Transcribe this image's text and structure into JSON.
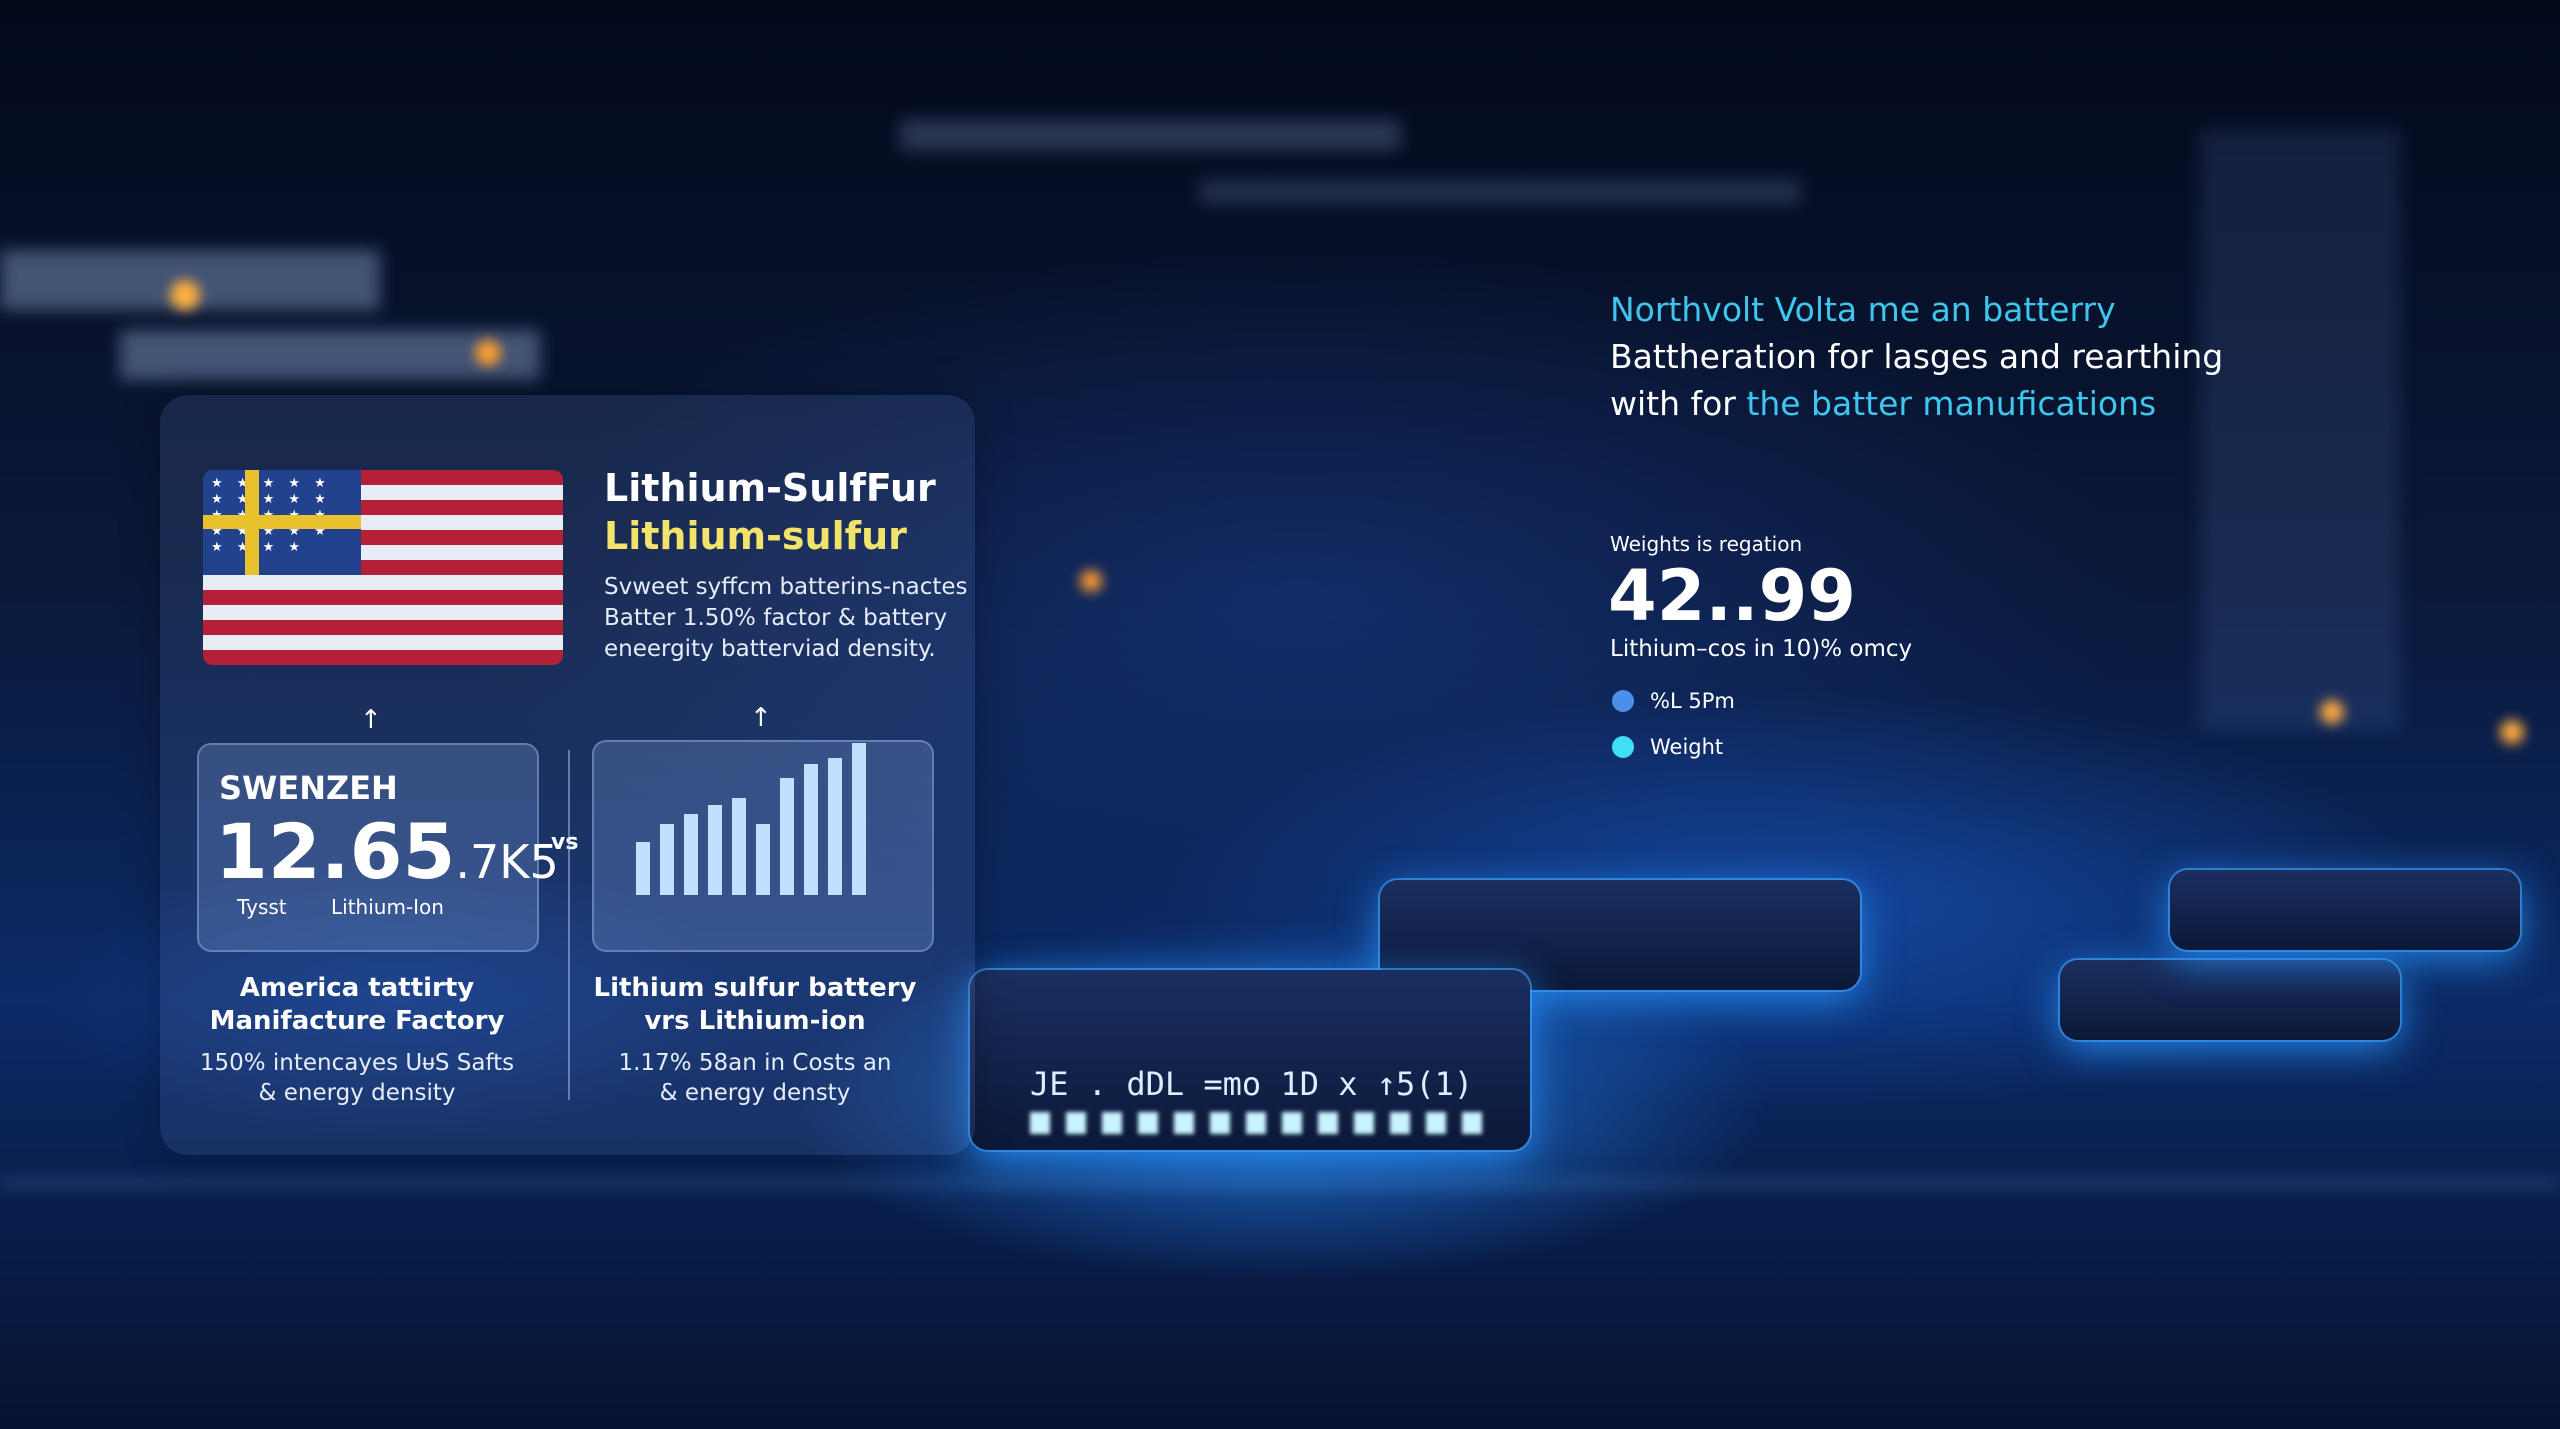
{
  "left_panel": {
    "flag_icon": "us-flag-with-swedish-cross",
    "title_line1": "Lithium-SulfFur",
    "title_line2": "Lithium-sulfur",
    "description": [
      "Svweet syffcm batterins-nactes",
      "Batter 1.50% factor & battery",
      "eneergity batterviad density."
    ],
    "card_left": {
      "label": "SWENZEH",
      "value_main": "12.65",
      "value_suffix": ".7K5",
      "sub_left": "Tysst",
      "sub_right": "Lithium-Ion"
    },
    "vs_label": "vs",
    "card_right": {
      "chart_icon": "bar-chart-icon",
      "bar_levels": [
        0.35,
        0.47,
        0.53,
        0.59,
        0.64,
        0.47,
        0.77,
        0.86,
        0.9,
        1.0
      ]
    },
    "caption_left": {
      "title": [
        "America tattirty",
        "Manifacture Factory"
      ],
      "sub": [
        "150% intencayes UᵾS Safts",
        "& energy density"
      ]
    },
    "caption_right": {
      "title": [
        "Lithium sulfur battery",
        "vrs Lithium-ion"
      ],
      "sub": [
        "1.17% 58an in Costs an",
        "& energy densty"
      ]
    }
  },
  "right_panel": {
    "heading_line1": "Northvolt Volta me an batterry",
    "heading_line2": "Battheration for lasges and rearthing",
    "heading_line3_white": "with for ",
    "heading_line3_cyan": "the batter manufications",
    "stat_label": "Weights is regation",
    "stat_value": "42..99",
    "stat_sub": "Lithium–cos in 10)% omcy",
    "legend": [
      {
        "label": "%L 5Pm",
        "color": "#4a90e8"
      },
      {
        "label": "Weight",
        "color": "#3fe0f5"
      }
    ]
  },
  "chip_text": "JE . dDL =mo 1D x ↑5(1)",
  "colors": {
    "accent_cyan": "#3ec6ee",
    "title_yellow": "#f2e46a",
    "background": "#0a1838"
  }
}
